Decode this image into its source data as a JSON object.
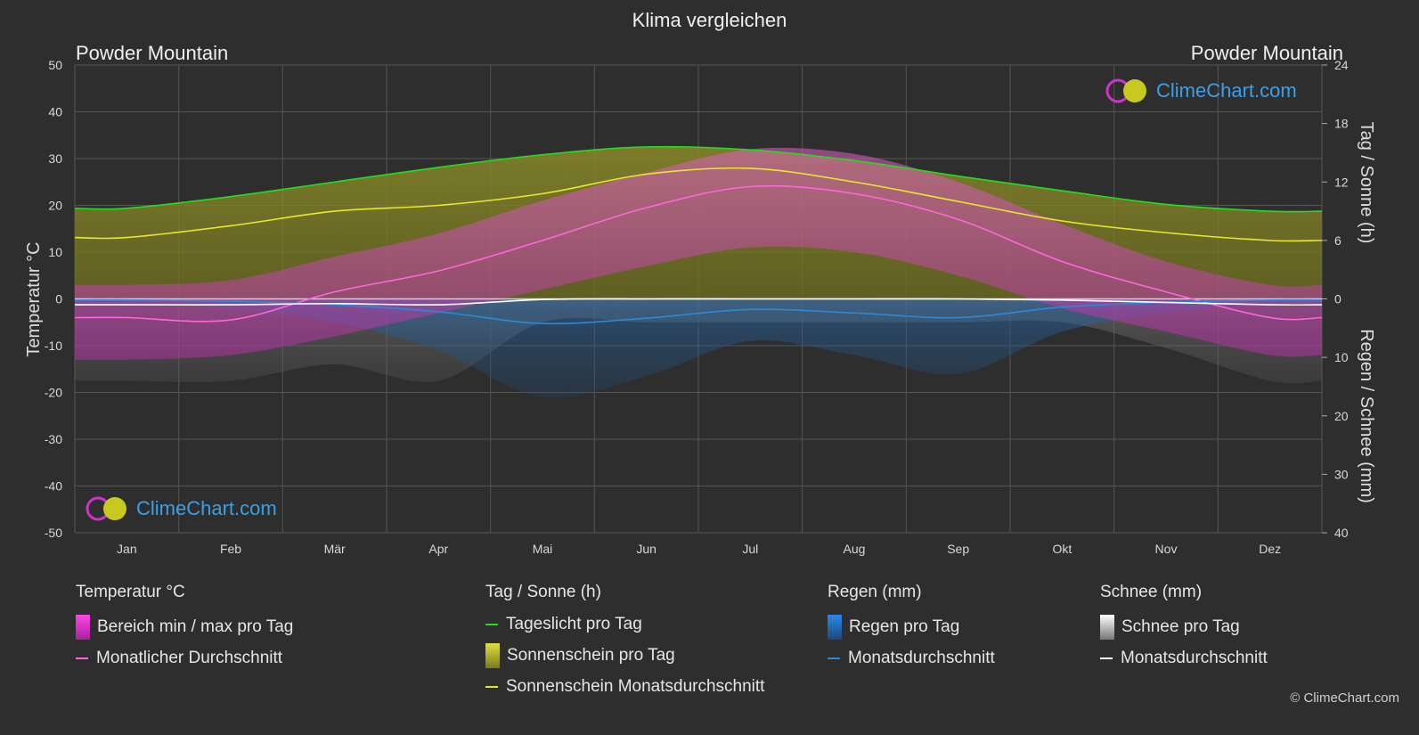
{
  "title": "Klima vergleichen",
  "location_left": "Powder Mountain",
  "location_right": "Powder Mountain",
  "brand": "ClimeChart.com",
  "copyright": "© ClimeChart.com",
  "chart_data": {
    "type": "area",
    "categories": [
      "Jan",
      "Feb",
      "Mär",
      "Apr",
      "Mai",
      "Jun",
      "Jul",
      "Aug",
      "Sep",
      "Okt",
      "Nov",
      "Dez"
    ],
    "y_left": {
      "label": "Temperatur °C",
      "range": [
        -50,
        50
      ],
      "ticks": [
        50,
        40,
        30,
        20,
        10,
        0,
        -10,
        -20,
        -30,
        -40,
        -50
      ]
    },
    "y_right_top": {
      "label": "Tag / Sonne (h)",
      "range": [
        0,
        24
      ],
      "ticks": [
        24,
        18,
        12,
        6,
        0
      ]
    },
    "y_right_bottom": {
      "label": "Regen / Schnee (mm)",
      "range": [
        0,
        40
      ],
      "ticks": [
        10,
        20,
        30,
        40
      ]
    },
    "grid": true,
    "series": [
      {
        "name": "Tageslicht pro Tag",
        "unit": "h",
        "color": "#22dd22",
        "values": [
          9.3,
          10.5,
          12.0,
          13.5,
          14.8,
          15.6,
          15.3,
          14.2,
          12.6,
          11.1,
          9.7,
          9.0
        ]
      },
      {
        "name": "Sonnenschein Monatsdurchschnitt",
        "unit": "h",
        "color": "#e8e830",
        "values": [
          6.3,
          7.5,
          9.0,
          9.6,
          10.8,
          12.8,
          13.4,
          12.0,
          10.0,
          8.0,
          6.8,
          6.0
        ]
      },
      {
        "name": "Temperatur Monatlicher Durchschnitt",
        "unit": "°C",
        "color": "#ff66dd",
        "values": [
          -4,
          -4.5,
          1.5,
          6,
          12.5,
          19.5,
          24,
          22.5,
          17,
          8,
          1.5,
          -4
        ]
      },
      {
        "name": "Regen Monatsdurchschnitt",
        "unit": "mm",
        "color": "#2a8ad8",
        "values": [
          0.2,
          0.4,
          1.0,
          2.2,
          4.2,
          3.3,
          1.8,
          2.4,
          3.2,
          1.4,
          0.6,
          0.2
        ]
      },
      {
        "name": "Schnee Monatsdurchschnitt",
        "unit": "mm",
        "color": "#ffffff",
        "values": [
          1.0,
          1.0,
          0.8,
          1.0,
          0.1,
          0.0,
          0.0,
          0.0,
          0.0,
          0.2,
          0.6,
          1.0
        ]
      },
      {
        "name": "Temperatur Bereich min / max pro Tag",
        "unit": "°C",
        "color": "#cc33bb",
        "min": [
          -13,
          -12,
          -8,
          -3,
          2,
          7,
          11,
          10,
          5,
          -2,
          -7,
          -12
        ],
        "max": [
          3,
          4,
          9,
          14,
          21,
          27,
          32,
          31,
          25,
          16,
          8,
          3
        ]
      }
    ]
  },
  "legend": {
    "temp": {
      "title": "Temperatur °C",
      "items": [
        "Bereich min / max pro Tag",
        "Monatlicher Durchschnitt"
      ]
    },
    "sun": {
      "title": "Tag / Sonne (h)",
      "items": [
        "Tageslicht pro Tag",
        "Sonnenschein pro Tag",
        "Sonnenschein Monatsdurchschnitt"
      ]
    },
    "rain": {
      "title": "Regen (mm)",
      "items": [
        "Regen pro Tag",
        "Monatsdurchschnitt"
      ]
    },
    "snow": {
      "title": "Schnee (mm)",
      "items": [
        "Schnee pro Tag",
        "Monatsdurchschnitt"
      ]
    }
  },
  "colors": {
    "background": "#2e2e2e",
    "daylight": "#22dd22",
    "sunshine": "#e8e830",
    "temp_avg": "#ff66dd",
    "temp_range": "#cc33bb",
    "rain": "#2a8ad8",
    "snow": "#ffffff"
  }
}
